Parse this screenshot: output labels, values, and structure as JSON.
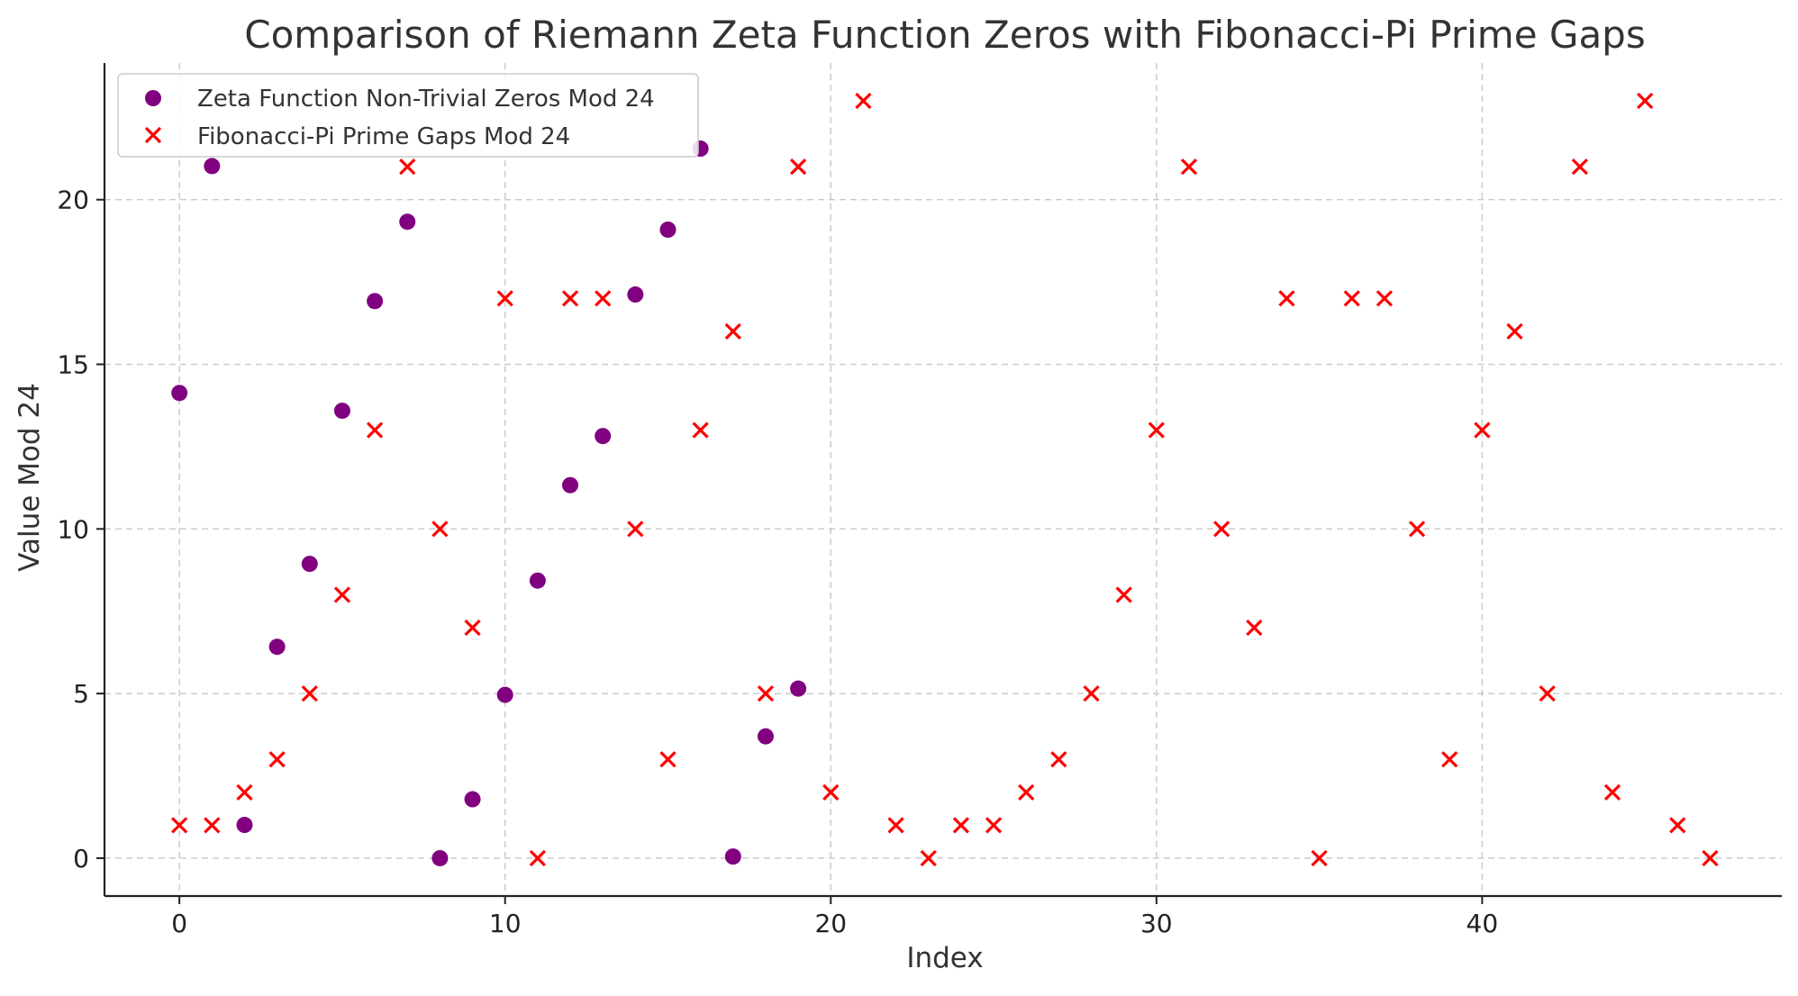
{
  "chart_data": {
    "type": "scatter",
    "title": "Comparison of Riemann Zeta Function Zeros with Fibonacci-Pi Prime Gaps",
    "xlabel": "Index",
    "ylabel": "Value Mod 24",
    "xlim": [
      -2.3,
      49.2
    ],
    "ylim": [
      -1.15,
      24.15
    ],
    "xticks": [
      0,
      10,
      20,
      30,
      40
    ],
    "yticks": [
      0,
      5,
      10,
      15,
      20
    ],
    "grid": true,
    "legend_position": "top-left",
    "series": [
      {
        "name": "Zeta Function Non-Trivial Zeros Mod 24",
        "marker": "circle",
        "color": "#800080",
        "x": [
          0,
          1,
          2,
          3,
          4,
          5,
          6,
          7,
          8,
          9,
          10,
          11,
          12,
          13,
          14,
          15,
          16,
          17,
          18,
          19
        ],
        "y": [
          14.13,
          21.02,
          1.01,
          6.42,
          8.94,
          13.59,
          16.92,
          19.33,
          0.0,
          1.79,
          4.96,
          8.43,
          11.33,
          12.82,
          17.12,
          19.09,
          21.55,
          0.05,
          3.7,
          5.15
        ]
      },
      {
        "name": "Fibonacci-Pi Prime Gaps Mod 24",
        "marker": "x",
        "color": "#ff0000",
        "x": [
          0,
          1,
          2,
          3,
          4,
          5,
          6,
          7,
          8,
          9,
          10,
          11,
          12,
          13,
          14,
          15,
          16,
          17,
          18,
          19,
          20,
          21,
          22,
          23,
          24,
          25,
          26,
          27,
          28,
          29,
          30,
          31,
          32,
          33,
          34,
          35,
          36,
          37,
          38,
          39,
          40,
          41,
          42,
          43,
          44,
          45,
          46,
          47
        ],
        "y": [
          1,
          1,
          2,
          3,
          5,
          8,
          13,
          21,
          10,
          7,
          17,
          0,
          17,
          17,
          10,
          3,
          13,
          16,
          5,
          21,
          2,
          23,
          1,
          0,
          1,
          1,
          2,
          3,
          5,
          8,
          13,
          21,
          10,
          7,
          17,
          0,
          17,
          17,
          10,
          3,
          13,
          16,
          5,
          21,
          2,
          23,
          1,
          0
        ]
      }
    ]
  }
}
